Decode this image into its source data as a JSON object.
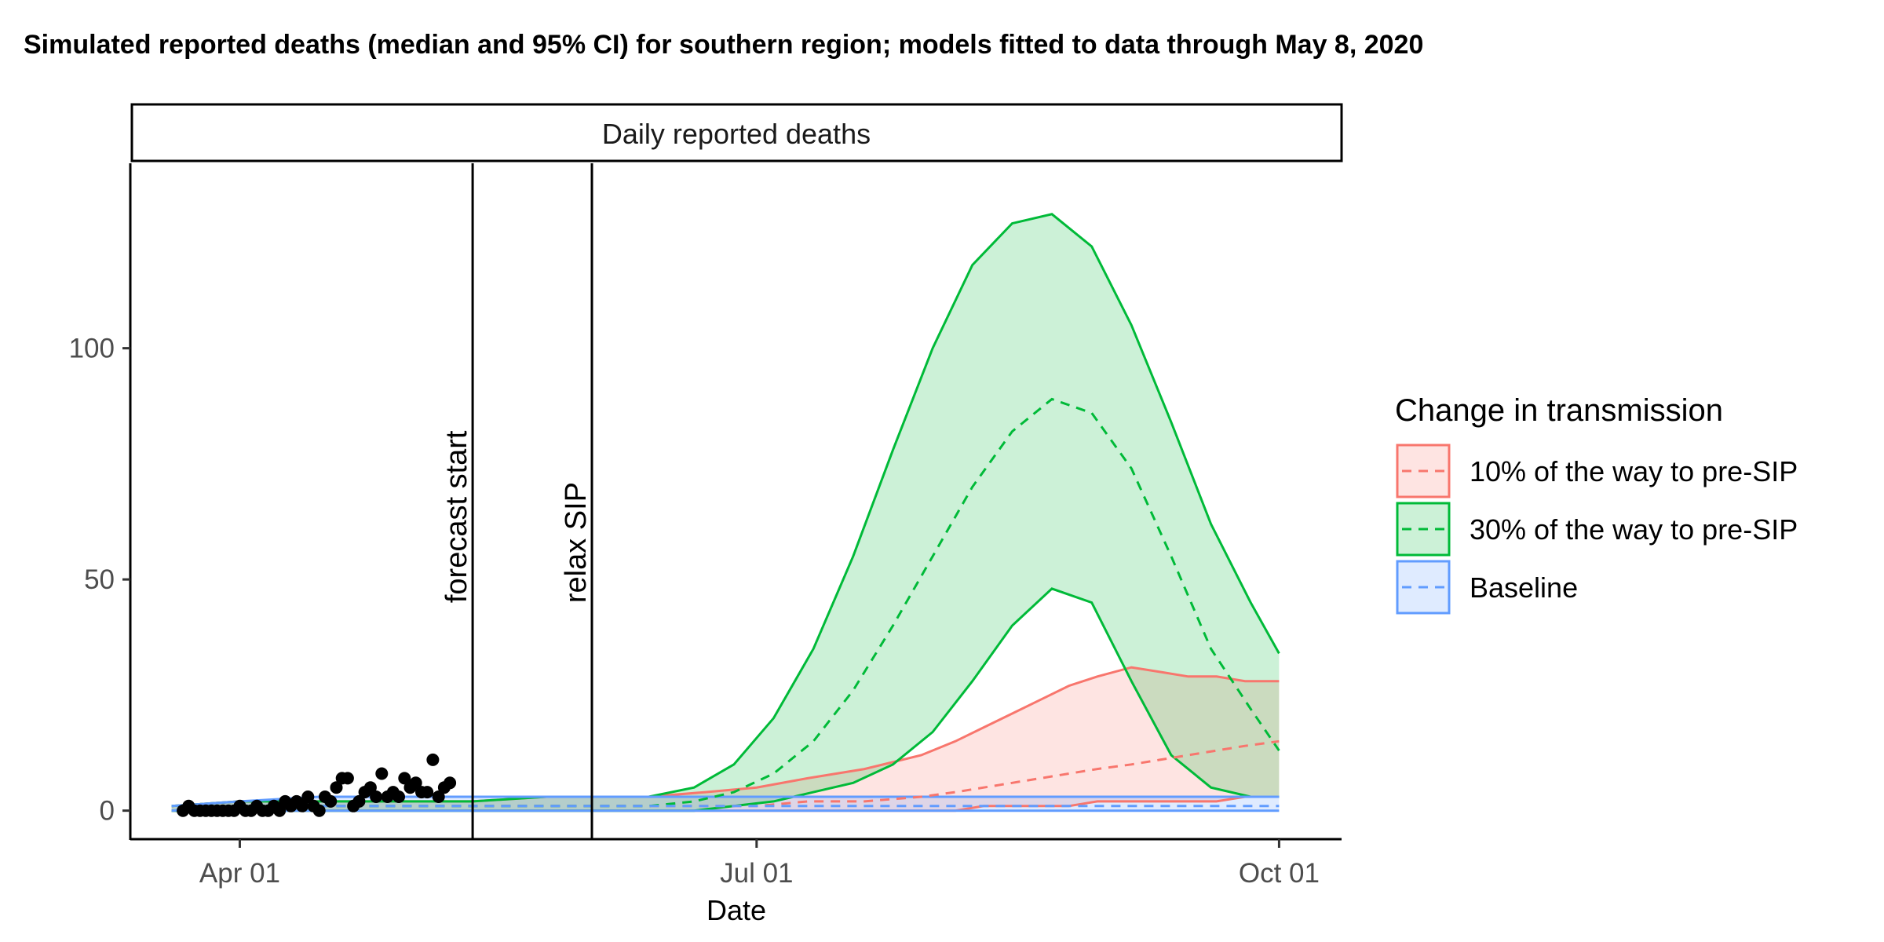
{
  "chart_data": {
    "type": "line",
    "title": "Simulated reported deaths (median and 95% CI) for southern region; models fitted to data through May 8, 2020",
    "facet_label": "Daily reported deaths",
    "xlabel": "Date",
    "ylabel": "",
    "x_ticks": [
      {
        "date": "2020-04-01",
        "label": "Apr 01"
      },
      {
        "date": "2020-07-01",
        "label": "Jul 01"
      },
      {
        "date": "2020-10-01",
        "label": "Oct 01"
      }
    ],
    "y_ticks": [
      0,
      50,
      100
    ],
    "xlim": [
      "2020-03-13",
      "2020-10-12"
    ],
    "ylim": [
      -6,
      140
    ],
    "vlines": [
      {
        "date": "2020-05-12",
        "label": "forecast start"
      },
      {
        "date": "2020-06-02",
        "label": "relax SIP"
      }
    ],
    "legend": {
      "title": "Change in transmission",
      "position": "right",
      "entries": [
        {
          "label": "10% of the way to pre-SIP",
          "color": "#F8766D"
        },
        {
          "label": "30% of the way to pre-SIP",
          "color": "#00BA38"
        },
        {
          "label": "Baseline",
          "color": "#619CFF"
        }
      ]
    },
    "observed": {
      "dates": [
        "2020-03-22",
        "2020-03-23",
        "2020-03-24",
        "2020-03-25",
        "2020-03-26",
        "2020-03-27",
        "2020-03-28",
        "2020-03-29",
        "2020-03-30",
        "2020-03-31",
        "2020-04-01",
        "2020-04-02",
        "2020-04-03",
        "2020-04-04",
        "2020-04-05",
        "2020-04-06",
        "2020-04-07",
        "2020-04-08",
        "2020-04-09",
        "2020-04-10",
        "2020-04-11",
        "2020-04-12",
        "2020-04-13",
        "2020-04-14",
        "2020-04-15",
        "2020-04-16",
        "2020-04-17",
        "2020-04-18",
        "2020-04-19",
        "2020-04-20",
        "2020-04-21",
        "2020-04-22",
        "2020-04-23",
        "2020-04-24",
        "2020-04-25",
        "2020-04-26",
        "2020-04-27",
        "2020-04-28",
        "2020-04-29",
        "2020-04-30",
        "2020-05-01",
        "2020-05-02",
        "2020-05-03",
        "2020-05-04",
        "2020-05-05",
        "2020-05-06",
        "2020-05-07",
        "2020-05-08"
      ],
      "values": [
        0,
        1,
        0,
        0,
        0,
        0,
        0,
        0,
        0,
        0,
        1,
        0,
        0,
        1,
        0,
        0,
        1,
        0,
        2,
        1,
        2,
        1,
        3,
        1,
        0,
        3,
        2,
        5,
        7,
        7,
        1,
        2,
        4,
        5,
        3,
        8,
        3,
        4,
        3,
        7,
        5,
        6,
        4,
        4,
        11,
        3,
        5,
        6
      ]
    },
    "series": [
      {
        "name": "10% of the way to pre-SIP",
        "color": "#F8766D",
        "dates": [
          "2020-03-20",
          "2020-04-01",
          "2020-04-15",
          "2020-05-01",
          "2020-05-12",
          "2020-05-25",
          "2020-06-02",
          "2020-06-12",
          "2020-06-22",
          "2020-07-01",
          "2020-07-10",
          "2020-07-20",
          "2020-07-30",
          "2020-08-05",
          "2020-08-10",
          "2020-08-15",
          "2020-08-20",
          "2020-08-25",
          "2020-08-30",
          "2020-09-05",
          "2020-09-10",
          "2020-09-15",
          "2020-09-20",
          "2020-09-25",
          "2020-10-01"
        ],
        "median": [
          0,
          0,
          1,
          1,
          1,
          1,
          1,
          1,
          1,
          1,
          2,
          2,
          3,
          4,
          5,
          6,
          7,
          8,
          9,
          10,
          11,
          12,
          13,
          14,
          15
        ],
        "lower": [
          0,
          0,
          0,
          0,
          0,
          0,
          0,
          0,
          0,
          0,
          0,
          0,
          0,
          0,
          1,
          1,
          1,
          1,
          2,
          2,
          2,
          2,
          2,
          3,
          3
        ],
        "upper": [
          1,
          2,
          2,
          2,
          2,
          3,
          3,
          3,
          4,
          5,
          7,
          9,
          12,
          15,
          18,
          21,
          24,
          27,
          29,
          31,
          30,
          29,
          29,
          28,
          28
        ]
      },
      {
        "name": "30% of the way to pre-SIP",
        "color": "#00BA38",
        "dates": [
          "2020-03-20",
          "2020-04-01",
          "2020-04-15",
          "2020-05-01",
          "2020-05-12",
          "2020-05-25",
          "2020-06-02",
          "2020-06-12",
          "2020-06-20",
          "2020-06-27",
          "2020-07-04",
          "2020-07-11",
          "2020-07-18",
          "2020-07-25",
          "2020-08-01",
          "2020-08-08",
          "2020-08-15",
          "2020-08-22",
          "2020-08-29",
          "2020-09-05",
          "2020-09-12",
          "2020-09-19",
          "2020-09-26",
          "2020-10-01"
        ],
        "median": [
          0,
          0,
          1,
          1,
          1,
          1,
          1,
          1,
          2,
          4,
          8,
          15,
          26,
          40,
          55,
          70,
          82,
          89,
          86,
          74,
          55,
          35,
          22,
          13
        ],
        "lower": [
          0,
          0,
          0,
          0,
          0,
          0,
          0,
          0,
          0,
          1,
          2,
          4,
          6,
          10,
          17,
          28,
          40,
          48,
          45,
          28,
          12,
          5,
          3,
          3
        ],
        "upper": [
          1,
          2,
          2,
          2,
          2,
          3,
          3,
          3,
          5,
          10,
          20,
          35,
          55,
          78,
          100,
          118,
          127,
          129,
          122,
          105,
          84,
          62,
          45,
          34
        ]
      },
      {
        "name": "Baseline",
        "color": "#619CFF",
        "dates": [
          "2020-03-20",
          "2020-04-01",
          "2020-04-15",
          "2020-05-01",
          "2020-05-12",
          "2020-05-25",
          "2020-06-02",
          "2020-06-20",
          "2020-07-01",
          "2020-07-20",
          "2020-08-10",
          "2020-08-31",
          "2020-09-15",
          "2020-10-01"
        ],
        "median": [
          0,
          1,
          1,
          1,
          1,
          1,
          1,
          1,
          1,
          1,
          1,
          1,
          1,
          1
        ],
        "lower": [
          0,
          0,
          0,
          0,
          0,
          0,
          0,
          0,
          0,
          0,
          0,
          0,
          0,
          0
        ],
        "upper": [
          1,
          2,
          3,
          3,
          3,
          3,
          3,
          3,
          3,
          3,
          3,
          3,
          3,
          3
        ]
      }
    ]
  }
}
